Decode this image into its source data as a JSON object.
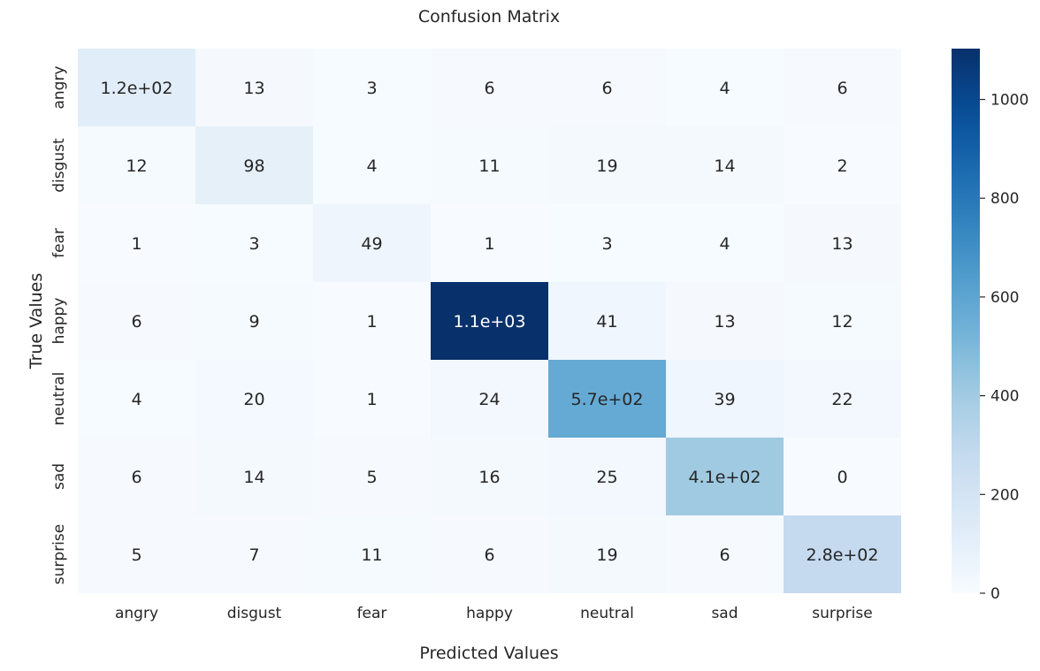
{
  "chart_data": {
    "type": "heatmap",
    "title": "Confusion Matrix",
    "xlabel": "Predicted Values",
    "ylabel": "True Values",
    "x_categories": [
      "angry",
      "disgust",
      "fear",
      "happy",
      "neutral",
      "sad",
      "surprise"
    ],
    "y_categories": [
      "angry",
      "disgust",
      "fear",
      "happy",
      "neutral",
      "sad",
      "surprise"
    ],
    "values": [
      [
        120,
        13,
        3,
        6,
        6,
        4,
        6
      ],
      [
        12,
        98,
        4,
        11,
        19,
        14,
        2
      ],
      [
        1,
        3,
        49,
        1,
        3,
        4,
        13
      ],
      [
        6,
        9,
        1,
        1100,
        41,
        13,
        12
      ],
      [
        4,
        20,
        1,
        24,
        570,
        39,
        22
      ],
      [
        6,
        14,
        5,
        16,
        25,
        410,
        0
      ],
      [
        5,
        7,
        11,
        6,
        19,
        6,
        280
      ]
    ],
    "annotations": [
      [
        "1.2e+02",
        "13",
        "3",
        "6",
        "6",
        "4",
        "6"
      ],
      [
        "12",
        "98",
        "4",
        "11",
        "19",
        "14",
        "2"
      ],
      [
        "1",
        "3",
        "49",
        "1",
        "3",
        "4",
        "13"
      ],
      [
        "6",
        "9",
        "1",
        "1.1e+03",
        "41",
        "13",
        "12"
      ],
      [
        "4",
        "20",
        "1",
        "24",
        "5.7e+02",
        "39",
        "22"
      ],
      [
        "6",
        "14",
        "5",
        "16",
        "25",
        "4.1e+02",
        "0"
      ],
      [
        "5",
        "7",
        "11",
        "6",
        "19",
        "6",
        "2.8e+02"
      ]
    ],
    "colorbar": {
      "colormap": "Blues",
      "vmin": 0,
      "vmax": 1103,
      "ticks": [
        0,
        200,
        400,
        600,
        800,
        1000
      ],
      "tick_labels": [
        "0",
        "200",
        "400",
        "600",
        "800",
        "1000"
      ]
    },
    "colors": {
      "low": "#f7fbff",
      "high": "#08306b",
      "text_dark": "#262626",
      "text_light": "#ffffff"
    }
  }
}
